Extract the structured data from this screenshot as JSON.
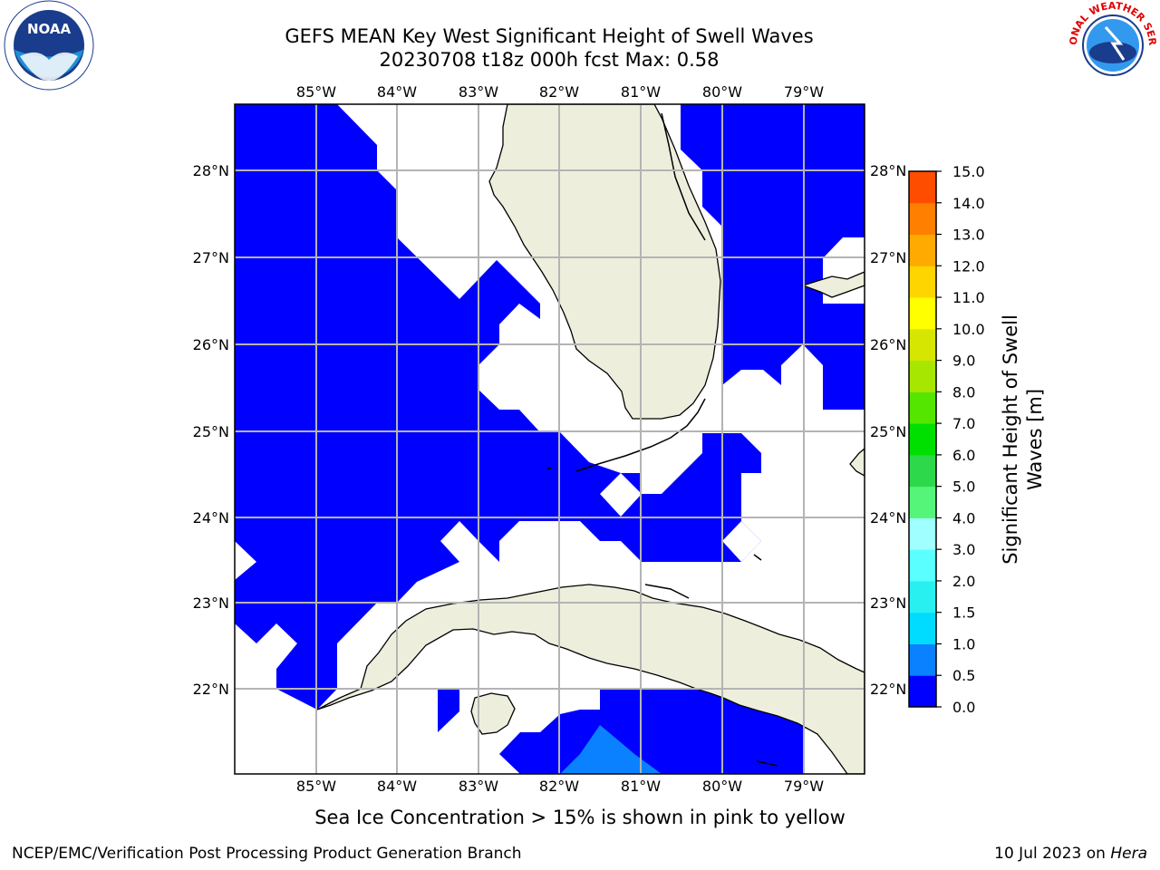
{
  "title": {
    "line1": "GEFS MEAN Key West Significant Height of Swell Waves",
    "line2": "20230708 t18z 000h fcst   Max: 0.58"
  },
  "logos": {
    "left": {
      "name": "noaa-logo",
      "text": "NOAA"
    },
    "right": {
      "name": "nws-logo",
      "text": "NATIONAL WEATHER SERVICE"
    }
  },
  "map": {
    "lon_ticks": [
      "85°W",
      "84°W",
      "83°W",
      "82°W",
      "81°W",
      "80°W",
      "79°W"
    ],
    "lat_ticks": [
      "28°N",
      "27°N",
      "26°N",
      "25°N",
      "24°N",
      "23°N",
      "22°N"
    ],
    "colors": {
      "land": "#eeeedd",
      "ocean_low": "#0000ff",
      "ocean_mid": "#0a82ff",
      "grid": "#b4b4b4",
      "coast": "#000000"
    }
  },
  "colorbar": {
    "label_line1": "Significant Height of Swell",
    "label_line2": "Waves [m]",
    "ticks": [
      "0.0",
      "0.5",
      "1.0",
      "1.5",
      "2.0",
      "3.0",
      "4.0",
      "5.0",
      "6.0",
      "7.0",
      "8.0",
      "9.0",
      "10.0",
      "11.0",
      "12.0",
      "13.0",
      "14.0",
      "15.0"
    ],
    "colors": [
      "#0000ff",
      "#0a82ff",
      "#00dcff",
      "#28f0f0",
      "#5affff",
      "#a0ffff",
      "#55f57a",
      "#2dd84a",
      "#00e000",
      "#55e600",
      "#a6e600",
      "#d6e600",
      "#ffff00",
      "#ffd500",
      "#ffaa00",
      "#ff7f00",
      "#ff4d00",
      "#ff1a00"
    ]
  },
  "subtitle": "Sea Ice Concentration > 15% is shown in pink to yellow",
  "footer": {
    "left": "NCEP/EMC/Verification Post Processing Product Generation Branch",
    "right_date": "10 Jul 2023 on ",
    "right_host": "Hera"
  }
}
